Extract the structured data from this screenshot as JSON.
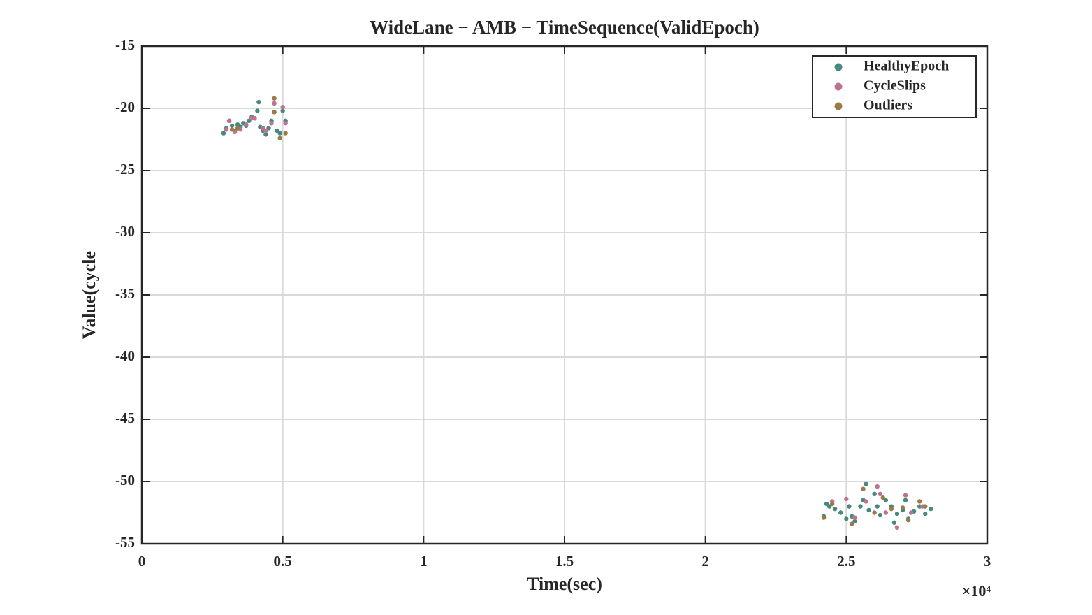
{
  "chart_data": {
    "type": "scatter",
    "title": "WideLane − AMB − TimeSequence(ValidEpoch)",
    "x_label": "Time(sec)",
    "y_label": "Value(cycle",
    "x_multiplier": "×10⁴",
    "xlim": [
      0,
      3
    ],
    "xticks": [
      0,
      0.5,
      1,
      1.5,
      2,
      2.5,
      3
    ],
    "ylim": [
      -55,
      -15
    ],
    "yticks": [
      -15,
      -20,
      -25,
      -30,
      -35,
      -40,
      -45,
      -50,
      -55
    ],
    "grid": true,
    "legend": "northeast",
    "series": [
      {
        "name": "HealthyEpoch",
        "color": "#45897f",
        "x": [
          0.29,
          0.3,
          0.31,
          0.32,
          0.33,
          0.34,
          0.35,
          0.36,
          0.37,
          0.38,
          0.39,
          0.4,
          0.41,
          0.415,
          0.42,
          0.43,
          0.44,
          0.45,
          0.46,
          0.47,
          0.48,
          0.49,
          0.5,
          0.51,
          2.42,
          2.43,
          2.44,
          2.46,
          2.48,
          2.5,
          2.51,
          2.52,
          2.53,
          2.55,
          2.56,
          2.57,
          2.58,
          2.6,
          2.61,
          2.62,
          2.64,
          2.66,
          2.67,
          2.68,
          2.7,
          2.71,
          2.72,
          2.74,
          2.76,
          2.78,
          2.8
        ],
        "values": [
          -22.0,
          -21.6,
          -21.0,
          -21.4,
          -21.8,
          -21.3,
          -21.5,
          -21.2,
          -21.4,
          -21.0,
          -20.7,
          -20.8,
          -20.2,
          -19.5,
          -21.5,
          -21.8,
          -22.1,
          -21.6,
          -21.0,
          -20.3,
          -21.8,
          -22.0,
          -20.2,
          -21.0,
          -52.8,
          -51.8,
          -52.0,
          -52.2,
          -52.5,
          -53.0,
          -52.0,
          -52.8,
          -53.2,
          -52.0,
          -51.5,
          -50.2,
          -52.3,
          -51.0,
          -52.0,
          -52.7,
          -51.5,
          -52.0,
          -53.3,
          -52.6,
          -52.3,
          -51.5,
          -53.0,
          -52.4,
          -52.0,
          -52.6,
          -52.2
        ]
      },
      {
        "name": "CycleSlips",
        "color": "#c0718f",
        "x": [
          0.3,
          0.31,
          0.33,
          0.35,
          0.37,
          0.39,
          0.4,
          0.43,
          0.44,
          0.46,
          0.47,
          0.5,
          0.51,
          2.45,
          2.5,
          2.53,
          2.57,
          2.61,
          2.62,
          2.64,
          2.68,
          2.71,
          2.73,
          2.77
        ],
        "values": [
          -21.7,
          -21.0,
          -21.9,
          -21.7,
          -21.3,
          -20.8,
          -20.8,
          -21.6,
          -21.8,
          -21.2,
          -19.6,
          -19.9,
          -21.2,
          -51.6,
          -51.4,
          -52.9,
          -51.6,
          -50.4,
          -51.0,
          -52.5,
          -53.7,
          -51.1,
          -52.5,
          -52.0
        ]
      },
      {
        "name": "Outliers",
        "color": "#9c7a45",
        "x": [
          0.32,
          0.34,
          0.47,
          0.47,
          0.49,
          0.51,
          2.42,
          2.45,
          2.52,
          2.56,
          2.6,
          2.63,
          2.66,
          2.7,
          2.72,
          2.76,
          2.78
        ],
        "values": [
          -21.7,
          -21.6,
          -19.2,
          -20.3,
          -22.4,
          -22.0,
          -52.9,
          -51.8,
          -53.4,
          -50.6,
          -52.5,
          -51.3,
          -52.2,
          -52.1,
          -53.1,
          -51.6,
          -52.0
        ]
      }
    ]
  }
}
